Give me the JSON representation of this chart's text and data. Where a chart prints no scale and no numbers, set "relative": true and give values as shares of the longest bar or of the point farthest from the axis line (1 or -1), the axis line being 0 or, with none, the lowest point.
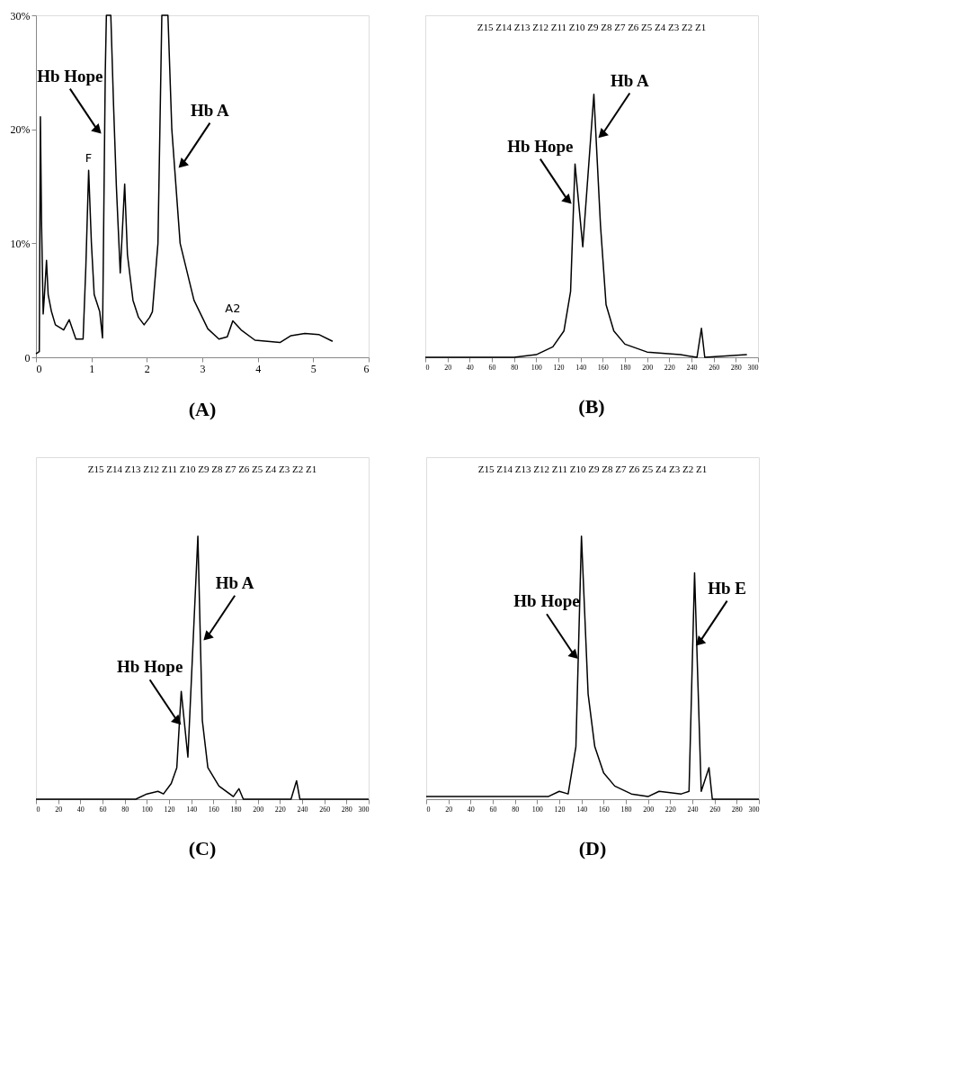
{
  "chart_data": [
    {
      "type": "line",
      "title": "(A)",
      "x": [
        0.0,
        0.06,
        0.08,
        0.1,
        0.13,
        0.16,
        0.19,
        0.22,
        0.28,
        0.35,
        0.5,
        0.6,
        0.72,
        0.85,
        0.9,
        0.95,
        1.0,
        1.05,
        1.15,
        1.2,
        1.25,
        1.27,
        1.35,
        1.4,
        1.45,
        1.52,
        1.6,
        1.65,
        1.75,
        1.85,
        1.95,
        2.05,
        2.1,
        2.2,
        2.27,
        2.38,
        2.45,
        2.6,
        2.85,
        3.1,
        3.3,
        3.45,
        3.55,
        3.7,
        3.95,
        4.4,
        4.6,
        4.85,
        5.1,
        5.35
      ],
      "series": [
        {
          "color": "#000000",
          "values": [
            0.3,
            0.5,
            21.1,
            12,
            3.8,
            6,
            8.5,
            5.5,
            4,
            2.85,
            2.4,
            3.3,
            1.6,
            1.6,
            8,
            16.4,
            10,
            5.5,
            4,
            1.7,
            25,
            30,
            30,
            22,
            15,
            7.4,
            15.2,
            9,
            5,
            3.5,
            2.85,
            3.5,
            4,
            10,
            30,
            30,
            20,
            10,
            5,
            2.5,
            1.6,
            1.8,
            3.2,
            2.4,
            1.5,
            1.3,
            1.9,
            2.1,
            2.0,
            1.4
          ]
        }
      ],
      "xlim": [
        0,
        6
      ],
      "xticks": [
        0,
        1,
        2,
        3,
        4,
        5,
        6
      ],
      "ylim": [
        0,
        30
      ],
      "yticks": [
        0,
        {
          "value": 10,
          "label": "10%"
        },
        {
          "value": 20,
          "label": "20%"
        },
        {
          "value": 30,
          "label": "30%"
        }
      ],
      "grid": false,
      "annotations": [
        {
          "text": "Hb Hope",
          "x": 1.1,
          "y": 20
        },
        {
          "text": "Hb A",
          "x": 2.65,
          "y": 17
        },
        {
          "text": "F",
          "x": 0.95,
          "y": 16.4
        },
        {
          "text": "A2",
          "x": 3.55,
          "y": 3.2
        }
      ]
    },
    {
      "type": "line",
      "title": "(B)",
      "relative": true,
      "tick_labels": "x",
      "x": [
        0,
        40,
        80,
        100,
        115,
        125,
        131,
        135,
        142,
        152,
        158,
        163,
        170,
        180,
        200,
        230,
        245,
        249,
        252,
        290
      ],
      "series": [
        {
          "color": "#000000",
          "values": [
            0,
            0,
            0,
            0.01,
            0.04,
            0.1,
            0.25,
            0.735,
            0.42,
            1,
            0.5,
            0.2,
            0.1,
            0.05,
            0.02,
            0.01,
            0,
            0.11,
            0,
            0.01
          ]
        }
      ],
      "xlim": [
        0,
        300
      ],
      "xticks": [
        0,
        20,
        40,
        60,
        80,
        100,
        120,
        140,
        160,
        180,
        200,
        220,
        240,
        260,
        280,
        300
      ],
      "grid": false,
      "annotations": [
        "Z15   Z14 Z13   Z12   Z11 Z10 Z9  Z8   Z7   Z6  Z5  Z4  Z3  Z2   Z1",
        {
          "text": "Hb Hope",
          "x": 128,
          "y": 0.6
        },
        {
          "text": "Hb A",
          "x": 160,
          "y": 0.85
        }
      ]
    },
    {
      "type": "line",
      "title": "(C)",
      "relative": true,
      "tick_labels": "x",
      "x": [
        0,
        50,
        90,
        100,
        110,
        115,
        122,
        127,
        131,
        137,
        146,
        150,
        155,
        165,
        178,
        183,
        187,
        230,
        235,
        238,
        300
      ],
      "series": [
        {
          "color": "#000000",
          "values": [
            0,
            0,
            0,
            0.02,
            0.03,
            0.02,
            0.06,
            0.12,
            0.41,
            0.16,
            1,
            0.3,
            0.12,
            0.05,
            0.01,
            0.04,
            0,
            0,
            0.07,
            0,
            0
          ]
        }
      ],
      "xlim": [
        0,
        300
      ],
      "xticks": [
        0,
        20,
        40,
        60,
        80,
        100,
        120,
        140,
        160,
        180,
        200,
        220,
        240,
        260,
        280,
        300
      ],
      "grid": false,
      "annotations": [
        "Z15   Z14 Z13   Z12   Z11 Z10 Z9  Z8   Z7   Z6  Z5  Z4  Z3  Z2   Z1",
        {
          "text": "Hb Hope",
          "x": 127,
          "y": 0.3
        },
        {
          "text": "Hb A",
          "x": 155,
          "y": 0.62
        }
      ]
    },
    {
      "type": "line",
      "title": "(D)",
      "relative": true,
      "tick_labels": "x",
      "x": [
        0,
        60,
        110,
        120,
        128,
        135,
        140,
        146,
        152,
        160,
        170,
        185,
        200,
        210,
        230,
        237,
        242,
        248,
        255,
        258,
        300
      ],
      "series": [
        {
          "color": "#000000",
          "values": [
            0.01,
            0.01,
            0.01,
            0.03,
            0.02,
            0.2,
            1,
            0.4,
            0.2,
            0.1,
            0.05,
            0.02,
            0.01,
            0.03,
            0.02,
            0.03,
            0.86,
            0.03,
            0.12,
            0,
            0
          ]
        }
      ],
      "xlim": [
        0,
        300
      ],
      "xticks": [
        0,
        20,
        40,
        60,
        80,
        100,
        120,
        140,
        160,
        180,
        200,
        220,
        240,
        260,
        280,
        300
      ],
      "grid": false,
      "annotations": [
        "Z15   Z14 Z13   Z12   Z11 Z10 Z9  Z8   Z7   Z6  Z5  Z4  Z3  Z2   Z1",
        {
          "text": "Hb Hope",
          "x": 133,
          "y": 0.55
        },
        {
          "text": "Hb E",
          "x": 247,
          "y": 0.6
        }
      ]
    }
  ]
}
